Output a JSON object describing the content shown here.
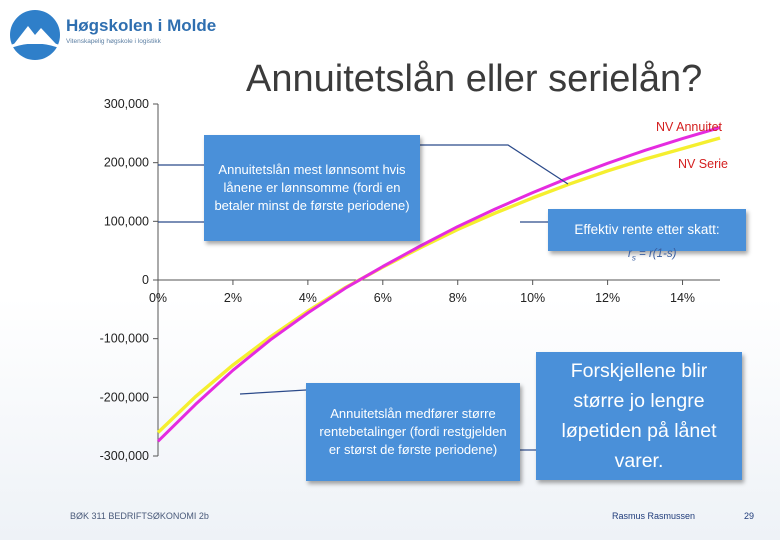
{
  "logo": {
    "name": "Høgskolen i Molde",
    "tagline": "Vitenskapelig høgskole i logistikk",
    "icon": "mountain-logo-icon"
  },
  "slide": {
    "title": "Annuitetslån eller serielån?",
    "footer_left": "BØK 311 BEDRIFTSØKONOMI 2b",
    "footer_author": "Rasmus Rasmussen",
    "page_number": "29"
  },
  "callouts": {
    "top": "Annuitetslån mest lønnsomt hvis lånene er lønnsomme (fordi en betaler minst de første periodene)",
    "effective_rate": "Effektiv rente etter skatt:",
    "formula_lhs": "r",
    "formula_sub": "s",
    "formula_rhs": " = r(1-s)",
    "bottom": "Annuitetslån medfører større rentebetalinger (fordi restgjelden er størst de første periodene)",
    "conclusion": "Forskjellene blir større jo lengre løpetiden på lånet varer."
  },
  "colors": {
    "annuitet": "#e52be0",
    "serie": "#f5ef2f",
    "callout_bg": "#4a90d9",
    "connector": "#2b4a8a",
    "axis": "#555555"
  },
  "chart_data": {
    "type": "line",
    "ylim": [
      -300000,
      300000
    ],
    "xlim": [
      0,
      15
    ],
    "y_ticks": [
      300000,
      200000,
      100000,
      0,
      -100000,
      -200000,
      -300000
    ],
    "y_tick_labels": [
      "300,000",
      "200,000",
      "100,000",
      "0",
      "-100,000",
      "-200,000",
      "-300,000"
    ],
    "x_ticks": [
      0,
      2,
      4,
      6,
      8,
      10,
      12,
      14
    ],
    "x_tick_labels": [
      "0%",
      "2%",
      "4%",
      "6%",
      "8%",
      "10%",
      "12%",
      "14%"
    ],
    "x": [
      0,
      1,
      2,
      3,
      4,
      5,
      6,
      7,
      8,
      9,
      10,
      11,
      12,
      13,
      14,
      15
    ],
    "series": [
      {
        "name": "NV Annuitet",
        "values": [
          -275000,
          -212000,
          -154000,
          -102000,
          -56000,
          -14000,
          23000,
          58000,
          91000,
          121000,
          149000,
          175000,
          199000,
          221000,
          241000,
          260000
        ]
      },
      {
        "name": "NV Serie",
        "values": [
          -260000,
          -199000,
          -145000,
          -97000,
          -53000,
          -13000,
          22000,
          55000,
          86000,
          114000,
          140000,
          164000,
          186000,
          206000,
          224000,
          242000
        ]
      }
    ]
  }
}
